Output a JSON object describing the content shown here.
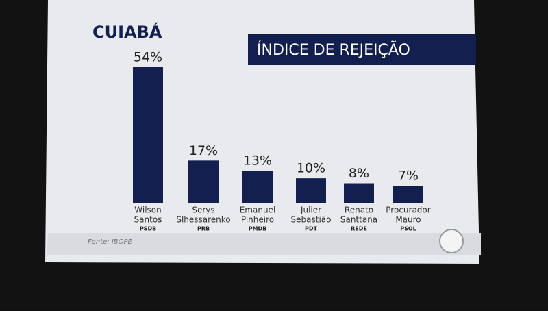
{
  "chart_data": {
    "type": "bar",
    "title": "CUIABÁ",
    "subtitle": "ÍNDICE DE REJEIÇÃO",
    "categories": [
      [
        "Wilson",
        "Santos"
      ],
      [
        "Serys",
        "Slhessarenko"
      ],
      [
        "Emanuel",
        "Pinheiro"
      ],
      [
        "Julier",
        "Sebastião"
      ],
      [
        "Renato",
        "Santtana"
      ],
      [
        "Procurador",
        "Mauro"
      ]
    ],
    "parties": [
      "PSDB",
      "PRB",
      "PMDB",
      "PDT",
      "REDE",
      "PSOL"
    ],
    "values": [
      54,
      17,
      13,
      10,
      8,
      7
    ],
    "value_labels": [
      "54%",
      "17%",
      "13%",
      "10%",
      "8%",
      "7%"
    ],
    "color": "#13204f",
    "source": "Fonte: IBOPE"
  }
}
